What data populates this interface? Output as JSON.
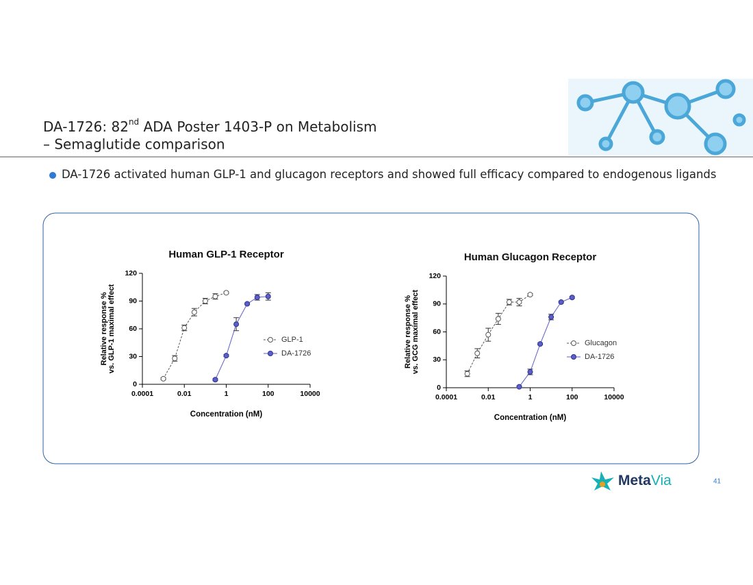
{
  "slide": {
    "title_parts": [
      "DA-1726: 82",
      "nd",
      " ADA Poster 1403-P on Metabolism"
    ],
    "subtitle": "– Semaglutide comparison",
    "bullet": "DA-1726 activated human GLP-1 and glucagon receptors and showed full efficacy compared to endogenous ligands",
    "logo": [
      "Meta",
      "Via"
    ],
    "page_number": "41"
  },
  "chart_data": [
    {
      "type": "scatter",
      "title": "Human GLP-1 Receptor",
      "ylabel": [
        "Relative response %",
        "vs. GLP-1 maximal effect"
      ],
      "xlabel": "Concentration (nM)",
      "xscale": "log",
      "xlim": [
        0.0001,
        10000
      ],
      "xticks": [
        0.0001,
        0.01,
        1,
        100,
        10000
      ],
      "ylim": [
        0,
        120
      ],
      "yticks": [
        0,
        30,
        60,
        90,
        120
      ],
      "legend": "right",
      "series": [
        {
          "name": "GLP-1",
          "color": "#555555",
          "fill": "#ffffff",
          "line": "dashed",
          "x": [
            0.001,
            0.0035,
            0.01,
            0.03,
            0.1,
            0.3,
            1
          ],
          "values": [
            6,
            28,
            61,
            78,
            90,
            95,
            99
          ],
          "errors": [
            1,
            3,
            3,
            4,
            3,
            3,
            1
          ]
        },
        {
          "name": "DA-1726",
          "color": "#5b5fc7",
          "fill": "#5b5fc7",
          "line": "solid",
          "x": [
            0.3,
            1,
            3,
            10,
            30,
            100
          ],
          "values": [
            5,
            31,
            65,
            87,
            94,
            95
          ],
          "errors": [
            1,
            1,
            7,
            1,
            3,
            4
          ]
        }
      ]
    },
    {
      "type": "scatter",
      "title": "Human Glucagon Receptor",
      "ylabel": [
        "Relative response %",
        "vs. GCG maximal effect"
      ],
      "xlabel": "Concentration (nM)",
      "xscale": "log",
      "xlim": [
        0.0001,
        10000
      ],
      "xticks": [
        0.0001,
        0.01,
        1,
        100,
        10000
      ],
      "ylim": [
        0,
        120
      ],
      "yticks": [
        0,
        30,
        60,
        90,
        120
      ],
      "legend": "right",
      "series": [
        {
          "name": "Glucagon",
          "color": "#555555",
          "fill": "#ffffff",
          "line": "dashed",
          "x": [
            0.001,
            0.003,
            0.01,
            0.03,
            0.1,
            0.3,
            1
          ],
          "values": [
            15,
            37,
            57,
            74,
            92,
            92,
            100
          ],
          "errors": [
            3,
            5,
            7,
            6,
            3,
            4,
            1
          ]
        },
        {
          "name": "DA-1726",
          "color": "#5b5fc7",
          "fill": "#5b5fc7",
          "line": "solid",
          "x": [
            0.3,
            1,
            3,
            10,
            30,
            100
          ],
          "values": [
            1,
            17,
            47,
            76,
            92,
            97
          ],
          "errors": [
            1,
            3,
            1,
            3,
            1,
            1
          ]
        }
      ]
    }
  ]
}
